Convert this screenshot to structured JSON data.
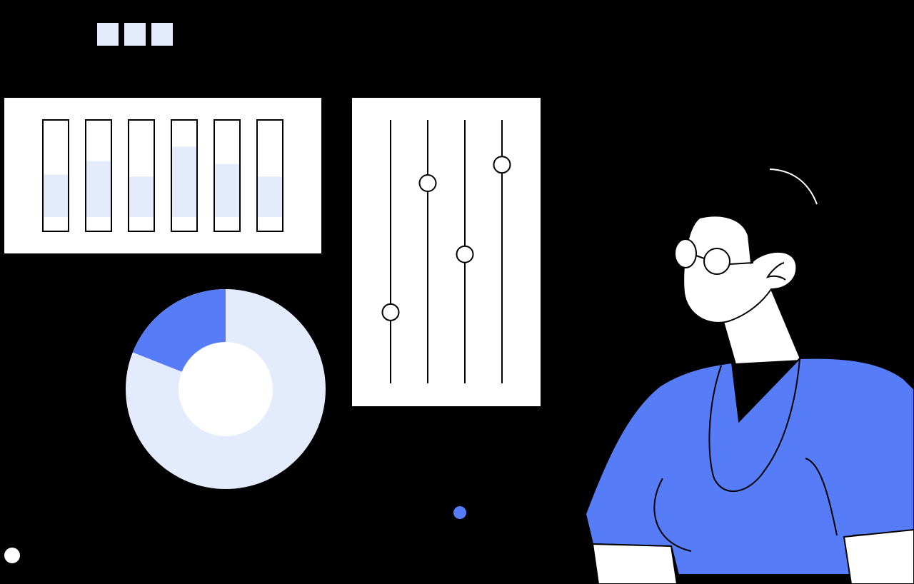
{
  "colors": {
    "background": "#000000",
    "panel": "#ffffff",
    "outline": "#000000",
    "accent_blue": "#577cf7",
    "light_blue": "#e3ebfc"
  },
  "window_dots": {
    "count": 3
  },
  "bar_panel": {
    "bars": [
      {
        "fill": 0.44
      },
      {
        "fill": 0.58
      },
      {
        "fill": 0.42
      },
      {
        "fill": 0.73
      },
      {
        "fill": 0.55
      },
      {
        "fill": 0.42
      }
    ]
  },
  "slider_panel": {
    "sliders": [
      {
        "level": 0.27
      },
      {
        "level": 0.76
      },
      {
        "level": 0.49
      },
      {
        "level": 0.83
      }
    ]
  },
  "donut": {
    "highlighted_fraction": 0.19,
    "remaining_fraction": 0.81
  },
  "icons": {
    "indicator_dot_blue": "dot-icon",
    "indicator_dot_white": "dot-icon"
  },
  "person": {
    "shirt_color": "#577cf7",
    "wears_glasses": true
  }
}
